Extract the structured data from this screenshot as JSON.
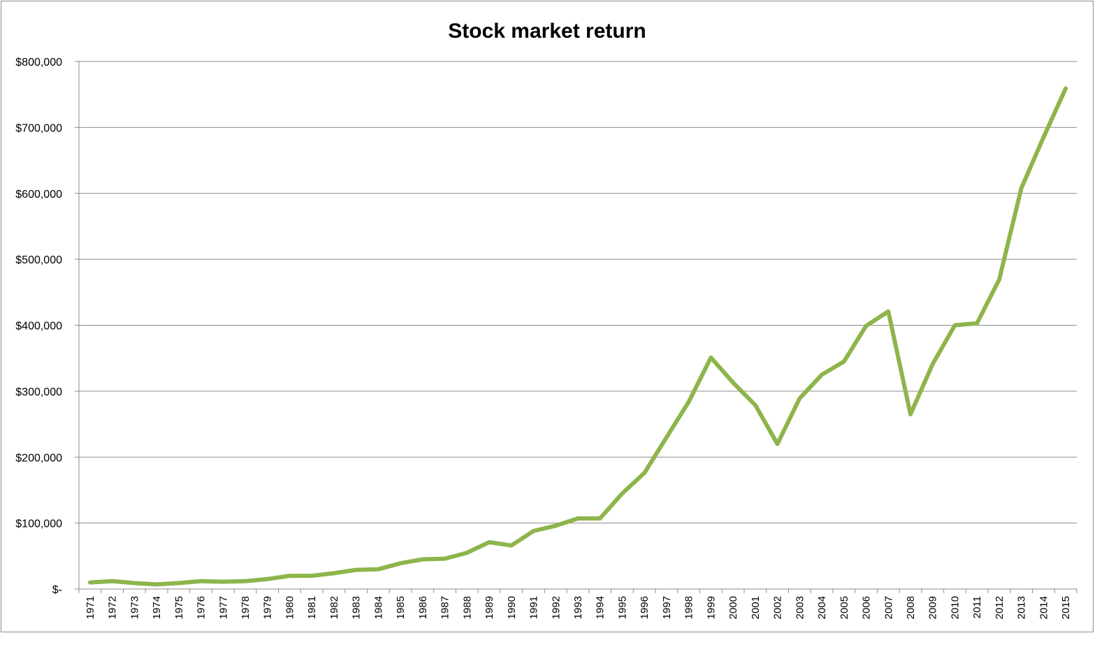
{
  "chart_data": {
    "type": "line",
    "title": "Stock market return",
    "xlabel": "",
    "ylabel": "",
    "ylim": [
      0,
      800000
    ],
    "yticks": [
      0,
      100000,
      200000,
      300000,
      400000,
      500000,
      600000,
      700000,
      800000
    ],
    "ytick_labels": [
      "$-",
      "$100,000",
      "$200,000",
      "$300,000",
      "$400,000",
      "$500,000",
      "$600,000",
      "$700,000",
      "$800,000"
    ],
    "grid": true,
    "legend": "none",
    "line_color": "#8db54b",
    "categories": [
      "1971",
      "1972",
      "1973",
      "1974",
      "1975",
      "1976",
      "1977",
      "1978",
      "1979",
      "1980",
      "1981",
      "1982",
      "1983",
      "1984",
      "1985",
      "1986",
      "1987",
      "1988",
      "1989",
      "1990",
      "1991",
      "1992",
      "1993",
      "1994",
      "1995",
      "1996",
      "1997",
      "1998",
      "1999",
      "2000",
      "2001",
      "2002",
      "2003",
      "2004",
      "2005",
      "2006",
      "2007",
      "2008",
      "2009",
      "2010",
      "2011",
      "2012",
      "2013",
      "2014",
      "2015"
    ],
    "series": [
      {
        "values": [
          10000,
          12000,
          9000,
          7000,
          9000,
          12000,
          11000,
          12000,
          15000,
          20000,
          20000,
          24000,
          29000,
          30000,
          39000,
          45000,
          46000,
          55000,
          71000,
          66000,
          88000,
          96000,
          107000,
          107000,
          145000,
          176000,
          230000,
          284000,
          351000,
          313000,
          279000,
          220000,
          289000,
          325000,
          345000,
          399000,
          421000,
          265000,
          341000,
          400000,
          403000,
          469000,
          608000,
          685000,
          759000
        ]
      }
    ]
  }
}
